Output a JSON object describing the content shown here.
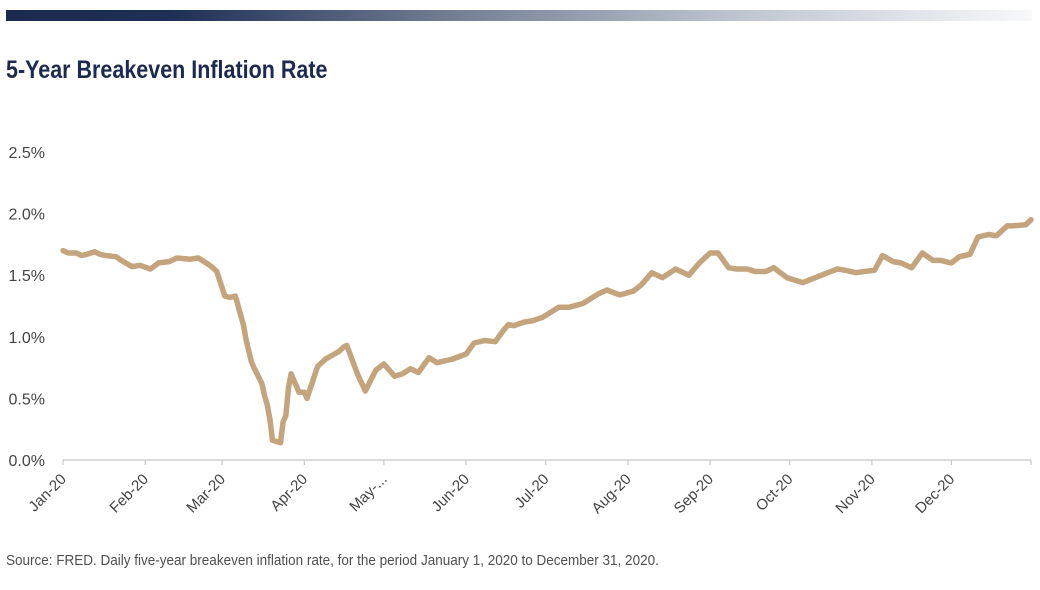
{
  "header": {
    "title": "5-Year Breakeven Inflation Rate",
    "accent_color": "#1b2a4e"
  },
  "footer": {
    "source": "Source: FRED. Daily five-year breakeven inflation rate, for the period January 1, 2020 to December 31, 2020."
  },
  "chart_data": {
    "type": "line",
    "title": "5-Year Breakeven Inflation Rate",
    "xlabel": "",
    "ylabel": "",
    "x_tick_labels": [
      "Jan-20",
      "Feb-20",
      "Mar-20",
      "Apr-20",
      "May-...",
      "Jun-20",
      "Jul-20",
      "Aug-20",
      "Sep-20",
      "Oct-20",
      "Nov-20",
      "Dec-20"
    ],
    "y_tick_labels": [
      "0.0%",
      "0.5%",
      "1.0%",
      "1.5%",
      "2.0%",
      "2.5%"
    ],
    "ylim": [
      0,
      2.5
    ],
    "xlim": [
      "2020-01-01",
      "2020-12-31"
    ],
    "grid": false,
    "line_color": "#c4a47c",
    "series": [
      {
        "x": [
          "2020-01-01",
          "2020-01-03",
          "2020-01-06",
          "2020-01-08",
          "2020-01-10",
          "2020-01-13",
          "2020-01-15",
          "2020-01-17",
          "2020-01-21",
          "2020-01-23",
          "2020-01-27",
          "2020-01-30",
          "2020-02-03",
          "2020-02-06",
          "2020-02-10",
          "2020-02-13",
          "2020-02-18",
          "2020-02-21",
          "2020-02-24",
          "2020-02-26",
          "2020-02-28",
          "2020-03-02",
          "2020-03-04",
          "2020-03-06",
          "2020-03-09",
          "2020-03-10",
          "2020-03-12",
          "2020-03-13",
          "2020-03-16",
          "2020-03-17",
          "2020-03-18",
          "2020-03-19",
          "2020-03-20",
          "2020-03-23",
          "2020-03-24",
          "2020-03-25",
          "2020-03-26",
          "2020-03-27",
          "2020-03-30",
          "2020-03-31",
          "2020-04-01",
          "2020-04-02",
          "2020-04-06",
          "2020-04-09",
          "2020-04-14",
          "2020-04-16",
          "2020-04-17",
          "2020-04-21",
          "2020-04-24",
          "2020-04-28",
          "2020-05-01",
          "2020-05-05",
          "2020-05-08",
          "2020-05-11",
          "2020-05-14",
          "2020-05-18",
          "2020-05-21",
          "2020-05-27",
          "2020-06-01",
          "2020-06-04",
          "2020-06-08",
          "2020-06-12",
          "2020-06-15",
          "2020-06-17",
          "2020-06-19",
          "2020-06-23",
          "2020-06-26",
          "2020-06-30",
          "2020-07-06",
          "2020-07-10",
          "2020-07-15",
          "2020-07-21",
          "2020-07-24",
          "2020-07-29",
          "2020-08-03",
          "2020-08-06",
          "2020-08-10",
          "2020-08-14",
          "2020-08-19",
          "2020-08-24",
          "2020-08-26",
          "2020-08-28",
          "2020-09-01",
          "2020-09-04",
          "2020-09-08",
          "2020-09-11",
          "2020-09-15",
          "2020-09-18",
          "2020-09-22",
          "2020-09-25",
          "2020-09-30",
          "2020-10-06",
          "2020-10-13",
          "2020-10-19",
          "2020-10-22",
          "2020-10-26",
          "2020-10-29",
          "2020-11-02",
          "2020-11-05",
          "2020-11-09",
          "2020-11-12",
          "2020-11-16",
          "2020-11-20",
          "2020-11-24",
          "2020-11-27",
          "2020-12-01",
          "2020-12-04",
          "2020-12-08",
          "2020-12-11",
          "2020-12-15",
          "2020-12-18",
          "2020-12-22",
          "2020-12-24",
          "2020-12-29",
          "2020-12-31"
        ],
        "y": [
          1.7,
          1.68,
          1.68,
          1.66,
          1.67,
          1.69,
          1.67,
          1.66,
          1.65,
          1.62,
          1.57,
          1.58,
          1.55,
          1.6,
          1.61,
          1.64,
          1.63,
          1.64,
          1.6,
          1.57,
          1.53,
          1.33,
          1.32,
          1.33,
          1.1,
          0.98,
          0.8,
          0.75,
          0.62,
          0.52,
          0.45,
          0.33,
          0.16,
          0.14,
          0.31,
          0.36,
          0.58,
          0.7,
          0.55,
          0.55,
          0.55,
          0.5,
          0.76,
          0.82,
          0.88,
          0.92,
          0.93,
          0.7,
          0.56,
          0.73,
          0.78,
          0.68,
          0.7,
          0.74,
          0.71,
          0.83,
          0.79,
          0.82,
          0.86,
          0.95,
          0.97,
          0.96,
          1.05,
          1.1,
          1.09,
          1.12,
          1.13,
          1.16,
          1.24,
          1.24,
          1.27,
          1.35,
          1.38,
          1.34,
          1.37,
          1.42,
          1.52,
          1.48,
          1.55,
          1.5,
          1.55,
          1.6,
          1.68,
          1.68,
          1.56,
          1.55,
          1.55,
          1.53,
          1.53,
          1.56,
          1.48,
          1.44,
          1.5,
          1.55,
          1.54,
          1.52,
          1.53,
          1.54,
          1.66,
          1.61,
          1.6,
          1.56,
          1.68,
          1.62,
          1.62,
          1.6,
          1.65,
          1.67,
          1.81,
          1.83,
          1.82,
          1.9,
          1.9,
          1.91,
          1.95
        ]
      }
    ]
  }
}
